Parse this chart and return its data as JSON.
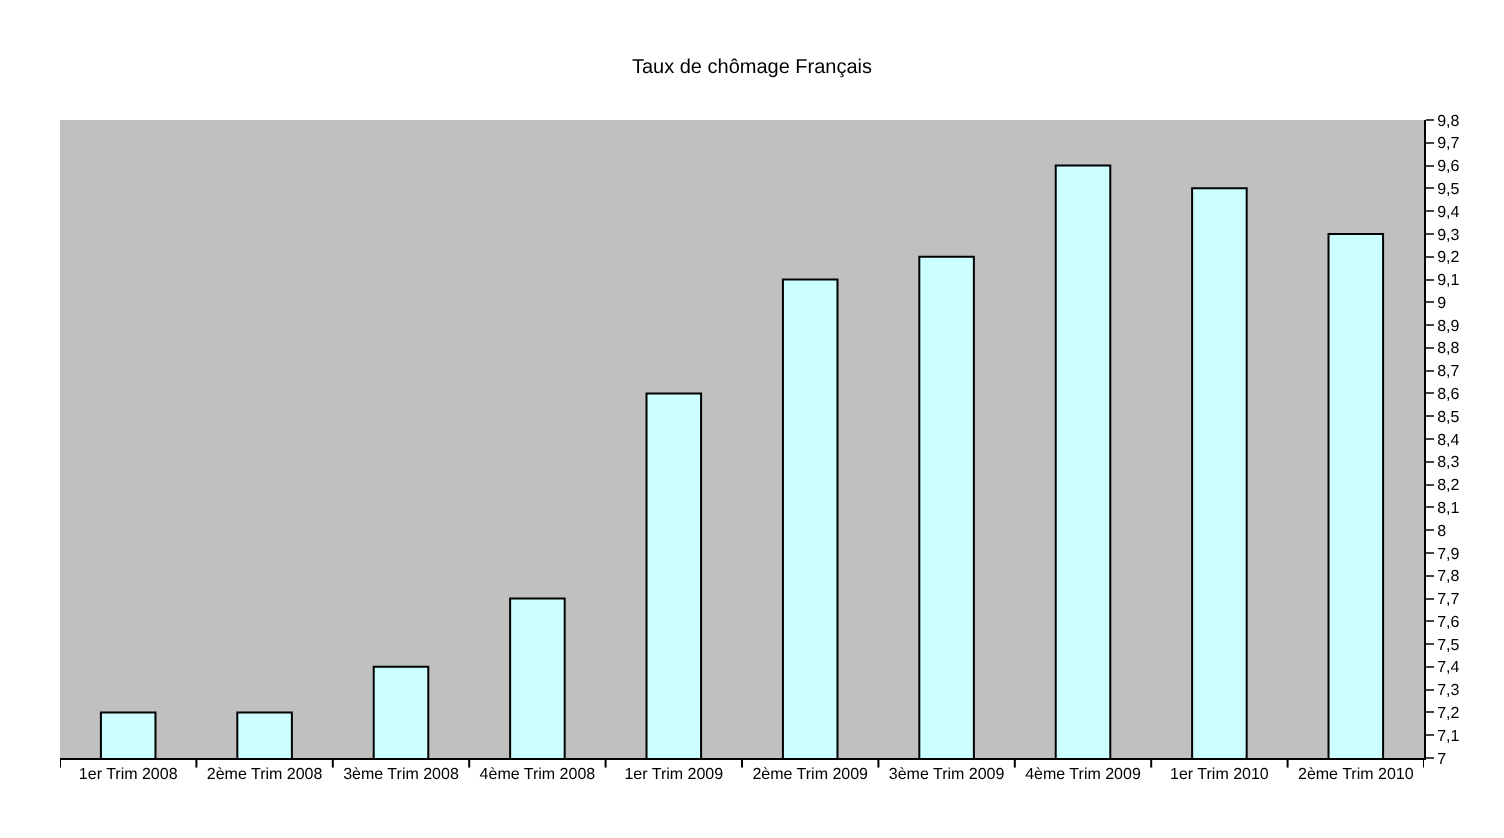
{
  "chart_data": {
    "type": "bar",
    "title": "Taux de chômage Français",
    "categories": [
      "1er Trim 2008",
      "2ème Trim 2008",
      "3ème Trim 2008",
      "4ème Trim 2008",
      "1er Trim 2009",
      "2ème Trim 2009",
      "3ème Trim 2009",
      "4ème Trim 2009",
      "1er Trim 2010",
      "2ème Trim 2010"
    ],
    "values": [
      7.2,
      7.2,
      7.4,
      7.7,
      8.6,
      9.1,
      9.2,
      9.6,
      9.5,
      9.3
    ],
    "color": "#ccffff",
    "ylim": [
      7,
      9.8
    ],
    "yticks": [
      7,
      {
        "value": 7.1,
        "label": "7,1"
      },
      {
        "value": 7.2,
        "label": "7,2"
      },
      {
        "value": 7.3,
        "label": "7,3"
      },
      {
        "value": 7.4,
        "label": "7,4"
      },
      {
        "value": 7.5,
        "label": "7,5"
      },
      {
        "value": 7.6,
        "label": "7,6"
      },
      {
        "value": 7.7,
        "label": "7,7"
      },
      {
        "value": 7.8,
        "label": "7,8"
      },
      {
        "value": 7.9,
        "label": "7,9"
      },
      8,
      {
        "value": 8.1,
        "label": "8,1"
      },
      {
        "value": 8.2,
        "label": "8,2"
      },
      {
        "value": 8.3,
        "label": "8,3"
      },
      {
        "value": 8.4,
        "label": "8,4"
      },
      {
        "value": 8.5,
        "label": "8,5"
      },
      {
        "value": 8.6,
        "label": "8,6"
      },
      {
        "value": 8.7,
        "label": "8,7"
      },
      {
        "value": 8.8,
        "label": "8,8"
      },
      {
        "value": 8.9,
        "label": "8,9"
      },
      9,
      {
        "value": 9.1,
        "label": "9,1"
      },
      {
        "value": 9.2,
        "label": "9,2"
      },
      {
        "value": 9.3,
        "label": "9,3"
      },
      {
        "value": 9.4,
        "label": "9,4"
      },
      {
        "value": 9.5,
        "label": "9,5"
      },
      {
        "value": 9.6,
        "label": "9,6"
      },
      {
        "value": 9.7,
        "label": "9,7"
      },
      {
        "value": 9.8,
        "label": "9,8"
      }
    ]
  }
}
